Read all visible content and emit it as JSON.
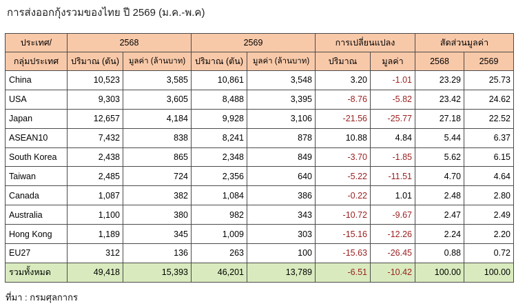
{
  "title": "การส่งออกกุ้งรวมของไทย ปี 2569 (ม.ค.-พ.ค)",
  "header": {
    "row1": {
      "group_label": "ประเทศ/",
      "y2568": "2568",
      "y2569": "2569",
      "change": "การเปลี่ยนแปลง",
      "share": "สัดส่วนมูลค่า"
    },
    "row2": {
      "group_label": "กลุ่มประเทศ",
      "vol_2568": "ปริมาณ (ตัน)",
      "val_2568": "มูลค่า (ล้านบาท)",
      "vol_2569": "ปริมาณ (ตัน)",
      "val_2569": "มูลค่า (ล้านบาท)",
      "chg_vol": "ปริมาณ",
      "chg_val": "มูลค่า",
      "share_2568": "2568",
      "share_2569": "2569"
    }
  },
  "rows": [
    {
      "country": "China",
      "vol_2568": "10,523",
      "val_2568": "3,585",
      "vol_2569": "10,861",
      "val_2569": "3,548",
      "chg_vol": "3.20",
      "chg_val": "-1.01",
      "share_2568": "23.29",
      "share_2569": "25.73"
    },
    {
      "country": "USA",
      "vol_2568": "9,303",
      "val_2568": "3,605",
      "vol_2569": "8,488",
      "val_2569": "3,395",
      "chg_vol": "-8.76",
      "chg_val": "-5.82",
      "share_2568": "23.42",
      "share_2569": "24.62"
    },
    {
      "country": "Japan",
      "vol_2568": "12,657",
      "val_2568": "4,184",
      "vol_2569": "9,928",
      "val_2569": "3,106",
      "chg_vol": "-21.56",
      "chg_val": "-25.77",
      "share_2568": "27.18",
      "share_2569": "22.52"
    },
    {
      "country": "ASEAN10",
      "vol_2568": "7,432",
      "val_2568": "838",
      "vol_2569": "8,241",
      "val_2569": "878",
      "chg_vol": "10.88",
      "chg_val": "4.84",
      "share_2568": "5.44",
      "share_2569": "6.37"
    },
    {
      "country": "South Korea",
      "vol_2568": "2,438",
      "val_2568": "865",
      "vol_2569": "2,348",
      "val_2569": "849",
      "chg_vol": "-3.70",
      "chg_val": "-1.85",
      "share_2568": "5.62",
      "share_2569": "6.15"
    },
    {
      "country": "Taiwan",
      "vol_2568": "2,485",
      "val_2568": "724",
      "vol_2569": "2,356",
      "val_2569": "640",
      "chg_vol": "-5.22",
      "chg_val": "-11.51",
      "share_2568": "4.70",
      "share_2569": "4.64"
    },
    {
      "country": "Canada",
      "vol_2568": "1,087",
      "val_2568": "382",
      "vol_2569": "1,084",
      "val_2569": "386",
      "chg_vol": "-0.22",
      "chg_val": "1.01",
      "share_2568": "2.48",
      "share_2569": "2.80"
    },
    {
      "country": "Australia",
      "vol_2568": "1,100",
      "val_2568": "380",
      "vol_2569": "982",
      "val_2569": "343",
      "chg_vol": "-10.72",
      "chg_val": "-9.67",
      "share_2568": "2.47",
      "share_2569": "2.49"
    },
    {
      "country": "Hong Kong",
      "vol_2568": "1,189",
      "val_2568": "345",
      "vol_2569": "1,009",
      "val_2569": "303",
      "chg_vol": "-15.16",
      "chg_val": "-12.26",
      "share_2568": "2.24",
      "share_2569": "2.20"
    },
    {
      "country": "EU27",
      "vol_2568": "312",
      "val_2568": "136",
      "vol_2569": "263",
      "val_2569": "100",
      "chg_vol": "-15.63",
      "chg_val": "-26.45",
      "share_2568": "0.88",
      "share_2569": "0.72"
    }
  ],
  "total": {
    "country": "รวมทั้งหมด",
    "vol_2568": "49,418",
    "val_2568": "15,393",
    "vol_2569": "46,201",
    "val_2569": "13,789",
    "chg_vol": "-6.51",
    "chg_val": "-10.42",
    "share_2568": "100.00",
    "share_2569": "100.00"
  },
  "source": "ที่มา : กรมศุลกากร",
  "colors": {
    "header_bg": "#f8c9a9",
    "total_bg": "#d9ebbe",
    "negative": "#9a1d1d"
  }
}
